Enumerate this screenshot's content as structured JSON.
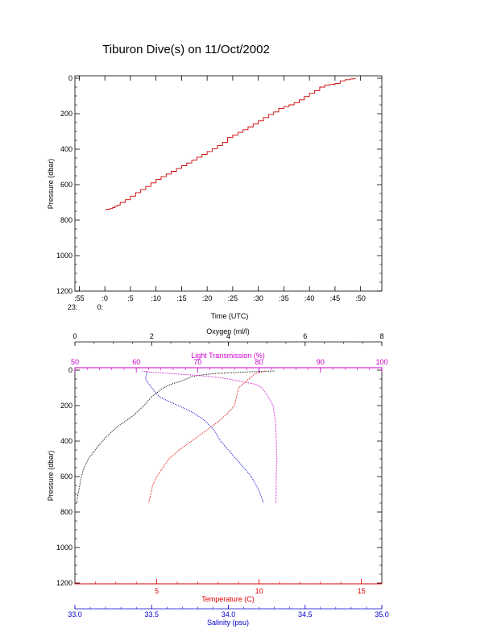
{
  "title": "Tiburon Dive(s) on 11/Oct/2002",
  "colors": {
    "axis": "#000000",
    "oxygen": "#000000",
    "transmission": "#cc00cc",
    "temperature": "#dd0000",
    "salinity": "#0000cc",
    "step": "#cc0000"
  },
  "chart_data": [
    {
      "type": "line",
      "xlabel": "Time (UTC)",
      "ylabel": "Pressure (dbar)",
      "yreversed": true,
      "ylim": [
        0,
        1200
      ],
      "xlim": [
        -5,
        55
      ],
      "yticks": [
        "0",
        "200",
        "400",
        "600",
        "800",
        "1000",
        "1200"
      ],
      "xticks": [
        {
          "v": -5,
          "label": ":55",
          "sub": "23:"
        },
        {
          "v": 0,
          "label": ":0",
          "sub": "0:"
        },
        {
          "v": 5,
          "label": ":5",
          "sub": ""
        },
        {
          "v": 10,
          "label": ":10",
          "sub": ""
        },
        {
          "v": 15,
          "label": ":15",
          "sub": ""
        },
        {
          "v": 20,
          "label": ":20",
          "sub": ""
        },
        {
          "v": 25,
          "label": ":25",
          "sub": ""
        },
        {
          "v": 30,
          "label": ":30",
          "sub": ""
        },
        {
          "v": 35,
          "label": ":35",
          "sub": ""
        },
        {
          "v": 40,
          "label": ":40",
          "sub": ""
        },
        {
          "v": 45,
          "label": ":45",
          "sub": ""
        },
        {
          "v": 50,
          "label": ":50",
          "sub": ""
        }
      ],
      "series": [
        {
          "x": [
            0.1,
            0.5,
            1.0,
            1.5,
            2.0,
            2.5,
            3.0,
            4.0,
            5.0,
            6.0,
            7.0,
            8.0,
            9.0,
            10.0,
            11.0,
            12.0,
            13.0,
            14.0,
            15.0,
            16.0,
            17.0,
            18.0,
            19.0,
            20.0,
            21.0,
            22.0,
            23.0,
            24.0,
            25.0,
            26.0,
            27.0,
            28.0,
            29.0,
            30.0,
            31.0,
            32.0,
            33.0,
            34.0,
            35.0,
            36.0,
            37.0,
            38.0,
            39.0,
            40.0,
            41.0,
            42.0,
            43.0,
            44.0,
            44.5,
            45.0,
            46.0,
            47.0,
            48.0,
            48.5,
            49.0
          ],
          "y": [
            740,
            738,
            735,
            730,
            720,
            715,
            700,
            685,
            665,
            645,
            628,
            610,
            590,
            570,
            555,
            540,
            525,
            508,
            493,
            478,
            462,
            445,
            430,
            413,
            397,
            380,
            362,
            335,
            320,
            305,
            290,
            275,
            258,
            240,
            222,
            205,
            190,
            170,
            160,
            150,
            138,
            122,
            103,
            85,
            70,
            50,
            38,
            35,
            34,
            30,
            15,
            8,
            4,
            3,
            2
          ]
        }
      ]
    },
    {
      "type": "scatter",
      "ylabel": "Pressure (dbar)",
      "yreversed": true,
      "ylim": [
        0,
        1200
      ],
      "yticks": [
        "0",
        "200",
        "400",
        "600",
        "800",
        "1000",
        "1200"
      ],
      "axes": {
        "oxygen": {
          "label": "Oxygen (ml/l)",
          "lim": [
            0,
            8
          ],
          "ticks": [
            "0",
            "2",
            "4",
            "6",
            "8"
          ],
          "position": "top-outer"
        },
        "transmission": {
          "label": "Light Transmission (%)",
          "lim": [
            50,
            100
          ],
          "ticks": [
            "50",
            "60",
            "70",
            "80",
            "90",
            "100"
          ],
          "position": "top-inner"
        },
        "temperature": {
          "label": "Temperature (C)",
          "lim": [
            1,
            16
          ],
          "ticks": [
            "5",
            "10",
            "15"
          ],
          "tick_values": [
            5,
            10,
            15
          ],
          "position": "bottom-inner"
        },
        "salinity": {
          "label": "Salinity (psu)",
          "lim": [
            33.0,
            35.0
          ],
          "ticks": [
            "33.0",
            "33.5",
            "34.0",
            "34.5",
            "35.0"
          ],
          "position": "bottom-outer"
        }
      },
      "series": [
        {
          "axis": "oxygen",
          "x": [
            5.2,
            4.5,
            3.6,
            3.2,
            3.0,
            2.8,
            2.5,
            2.3,
            2.0,
            1.8,
            1.5,
            1.1,
            0.8,
            0.6,
            0.35,
            0.22,
            0.15,
            0.1,
            0.06,
            0.05
          ],
          "y": [
            5,
            10,
            20,
            30,
            40,
            60,
            80,
            100,
            150,
            200,
            260,
            320,
            380,
            430,
            500,
            560,
            620,
            680,
            720,
            750
          ]
        },
        {
          "axis": "transmission",
          "x": [
            61,
            62,
            66,
            70,
            73,
            75,
            76.5,
            78,
            79.5,
            80.5,
            81.5,
            82.3,
            82.7,
            82.8,
            82.9,
            82.8,
            82.8,
            82.7
          ],
          "y": [
            5,
            10,
            20,
            30,
            40,
            50,
            60,
            70,
            80,
            100,
            150,
            200,
            300,
            400,
            500,
            600,
            700,
            750
          ]
        },
        {
          "axis": "temperature",
          "x": [
            10.3,
            9.8,
            9.5,
            9.0,
            8.9,
            8.8,
            8.4,
            7.9,
            7.3,
            6.7,
            6.1,
            5.6,
            5.3,
            5.0,
            4.8,
            4.7,
            4.6
          ],
          "y": [
            5,
            20,
            50,
            100,
            150,
            200,
            250,
            300,
            350,
            400,
            450,
            500,
            550,
            600,
            650,
            700,
            750
          ]
        },
        {
          "axis": "salinity",
          "x": [
            33.47,
            33.46,
            33.5,
            33.55,
            33.62,
            33.7,
            33.77,
            33.84,
            33.9,
            33.95,
            34.0,
            34.05,
            34.1,
            34.15,
            34.2,
            34.23
          ],
          "y": [
            5,
            50,
            100,
            150,
            180,
            210,
            240,
            280,
            330,
            400,
            450,
            500,
            550,
            600,
            680,
            750
          ]
        }
      ]
    }
  ]
}
